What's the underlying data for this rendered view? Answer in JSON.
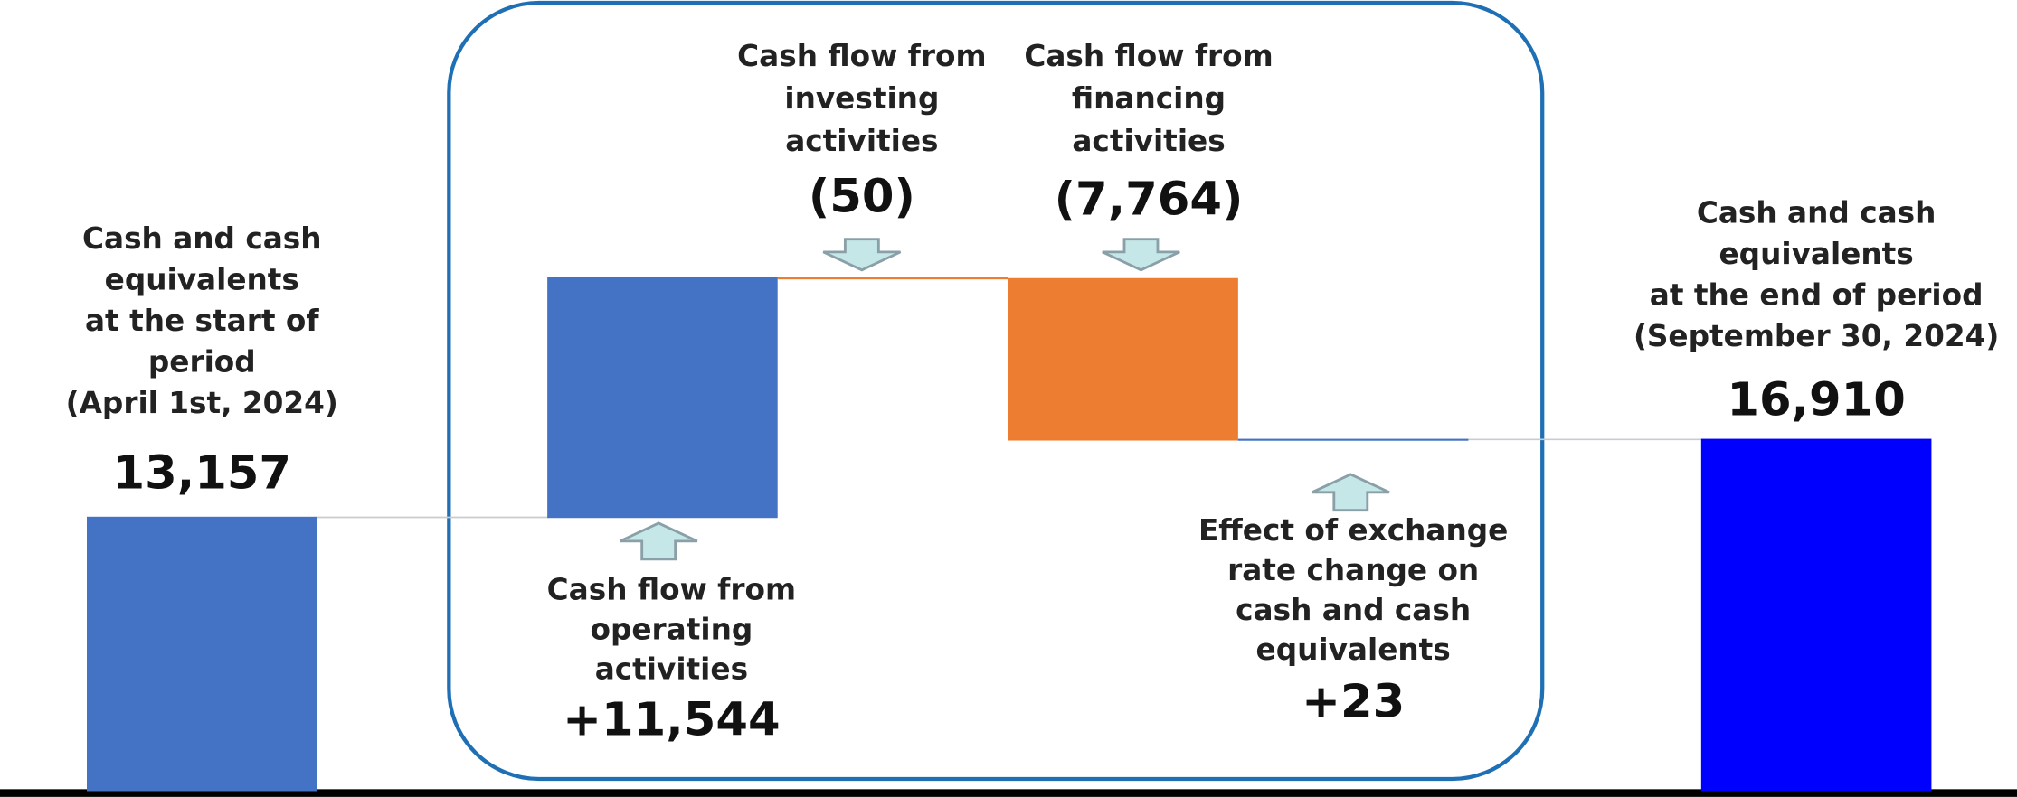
{
  "chart_data": {
    "type": "waterfall",
    "categories": [
      [
        "Cash and cash",
        "equivalents",
        "at the start of",
        "period",
        "(April 1st, 2024)"
      ],
      [
        "Cash flow from",
        "operating",
        "activities"
      ],
      [
        "Cash flow from",
        "investing",
        "activities"
      ],
      [
        "Cash flow from",
        "financing",
        "activities"
      ],
      [
        "Effect of exchange",
        "rate change on",
        "cash and cash",
        "equivalents"
      ],
      [
        "Cash and cash",
        "equivalents",
        "at the end of period",
        "(September 30, 2024)"
      ]
    ],
    "values": [
      13157,
      11544,
      -50,
      -7764,
      23,
      16910
    ],
    "value_labels": [
      "13,157",
      "+11,544",
      "(50)",
      "(7,764)",
      "+23",
      "16,910"
    ],
    "measure": [
      "absolute",
      "relative",
      "relative",
      "relative",
      "relative",
      "absolute"
    ],
    "colors": [
      "#4472c4",
      "#4472c4",
      "#ed7d31",
      "#ed7d31",
      "#4472c4",
      "#0000ff"
    ]
  }
}
